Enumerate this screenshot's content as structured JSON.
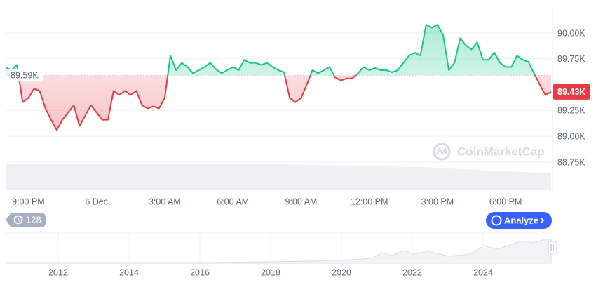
{
  "chart_data": {
    "type": "line",
    "categories": [
      null,
      null,
      null,
      null,
      "9:00 PM",
      null,
      null,
      null,
      null,
      null,
      null,
      null,
      null,
      null,
      null,
      null,
      "6 Dec",
      null,
      null,
      null,
      null,
      null,
      null,
      null,
      null,
      null,
      null,
      null,
      "3:00 AM",
      null,
      null,
      null,
      null,
      null,
      null,
      null,
      null,
      null,
      null,
      null,
      "6:00 AM",
      null,
      null,
      null,
      null,
      null,
      null,
      null,
      null,
      null,
      null,
      null,
      "9:00 AM",
      null,
      null,
      null,
      null,
      null,
      null,
      null,
      null,
      null,
      null,
      null,
      "12:00 PM",
      null,
      null,
      null,
      null,
      null,
      null,
      null,
      null,
      null,
      null,
      null,
      "3:00 PM",
      null,
      null,
      null,
      null,
      null,
      null,
      null,
      null,
      null,
      null,
      null,
      "6:00 PM",
      null,
      null,
      null,
      null,
      null,
      null,
      null,
      null
    ],
    "values": [
      89670,
      89640,
      89690,
      89330,
      89370,
      89460,
      89440,
      89270,
      89160,
      89060,
      89160,
      89230,
      89300,
      89100,
      89200,
      89300,
      89230,
      89160,
      89160,
      89440,
      89400,
      89440,
      89400,
      89440,
      89300,
      89270,
      89290,
      89270,
      89370,
      89780,
      89640,
      89710,
      89670,
      89610,
      89640,
      89670,
      89710,
      89650,
      89610,
      89640,
      89670,
      89640,
      89740,
      89710,
      89710,
      89690,
      89710,
      89670,
      89640,
      89620,
      89370,
      89330,
      89370,
      89500,
      89640,
      89610,
      89640,
      89670,
      89570,
      89540,
      89560,
      89560,
      89610,
      89670,
      89640,
      89660,
      89640,
      89640,
      89620,
      89640,
      89710,
      89780,
      89810,
      89780,
      90080,
      90050,
      90080,
      89980,
      89640,
      89710,
      89950,
      89880,
      89840,
      89910,
      89740,
      89740,
      89810,
      89710,
      89670,
      89670,
      89780,
      89740,
      89720,
      89610,
      89500,
      89400,
      89430
    ],
    "up_color": "#16c784",
    "down_color": "#ea3943",
    "ylim": [
      88485,
      90251
    ],
    "yticks": [
      {
        "value": 88750,
        "label": "88.75K"
      },
      {
        "value": 89000,
        "label": "89.00K"
      },
      {
        "value": 89250,
        "label": "89.25K"
      },
      {
        "value": 89750,
        "label": "89.75K"
      },
      {
        "value": 90000,
        "label": "90.00K"
      }
    ],
    "grid": true,
    "baseline": {
      "value": 89590,
      "label": "89.59K"
    },
    "current_price": {
      "value": 89430,
      "label": "89.43K"
    },
    "watermark": "CoinMarketCap"
  },
  "controls": {
    "history_count": "128",
    "analyze": "Analyze"
  },
  "navigator": {
    "years": [
      "2012",
      "2014",
      "2016",
      "2018",
      "2020",
      "2022",
      "2024"
    ]
  }
}
